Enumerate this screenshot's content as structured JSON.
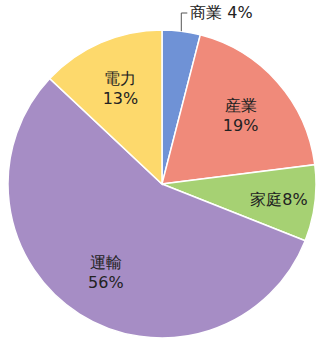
{
  "chart_data": {
    "type": "pie",
    "categories": [
      "商業",
      "産業",
      "家庭",
      "運輸",
      "電力"
    ],
    "values": [
      4,
      19,
      8,
      56,
      13
    ],
    "value_labels": [
      "4%",
      "19%",
      "8%",
      "56%",
      "13%"
    ],
    "colors": [
      "#6f92d6",
      "#f08a7a",
      "#a6d173",
      "#a68dc5",
      "#fdd96c"
    ],
    "data_labels": true
  }
}
